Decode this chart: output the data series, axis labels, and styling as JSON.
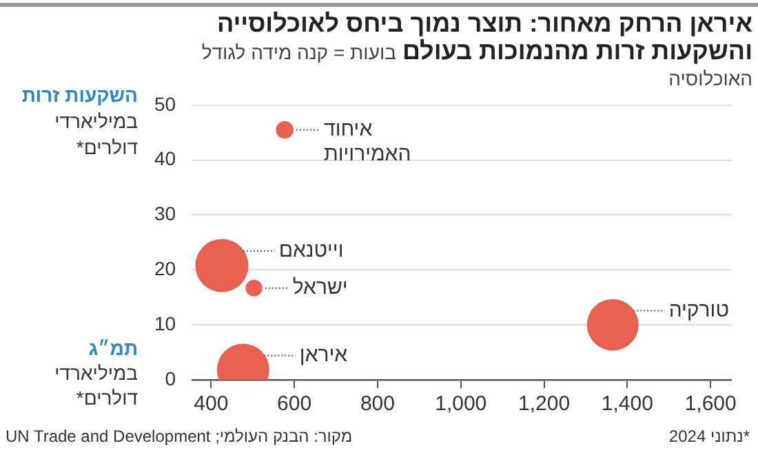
{
  "chart_data": {
    "type": "bubble",
    "title": "איראן הרחק מאחור: תוצר נמוך ביחס לאוכלוסייה והשקעות זרות מהנמוכות בעולם",
    "subtitle": "בועות = קנה מידה לגודל האוכלוסיה",
    "ylabel": "השקעות זרות במיליארדי דולרים*",
    "xlabel": "תמ״ג במיליארדי דולרים*",
    "x": [
      577,
      426,
      503,
      1365,
      477
    ],
    "values": [
      45.5,
      20.8,
      16.7,
      10.0,
      1.8
    ],
    "sizes": [
      0.11,
      1,
      0.1,
      0.94,
      0.97
    ],
    "color": "#e8604f",
    "xlim": [
      355,
      1650
    ],
    "xticks": [
      400,
      600,
      800,
      {
        "value": 1000,
        "label": "1,000"
      },
      {
        "value": 1200,
        "label": "1,200"
      },
      {
        "value": 1400,
        "label": "1,400"
      },
      {
        "value": 1600,
        "label": "1,600"
      }
    ],
    "ylim": [
      0,
      50
    ],
    "yticks": [
      0,
      10,
      20,
      30,
      40,
      50
    ],
    "grid": "y",
    "legend": false,
    "annotations": [
      {
        "text": "איחוד האמירויות",
        "x": 577,
        "y": 45.5
      },
      {
        "text": "וייטנאם",
        "x": 426,
        "y": 20.8
      },
      {
        "text": "ישראל",
        "x": 503,
        "y": 16.7
      },
      {
        "text": "טורקיה",
        "x": 1365,
        "y": 10.0
      },
      {
        "text": "איראן",
        "x": 477,
        "y": 1.8
      },
      "מקור: הבנק העולמי; UN Trade and Development",
      "*נתוני 2024"
    ]
  }
}
